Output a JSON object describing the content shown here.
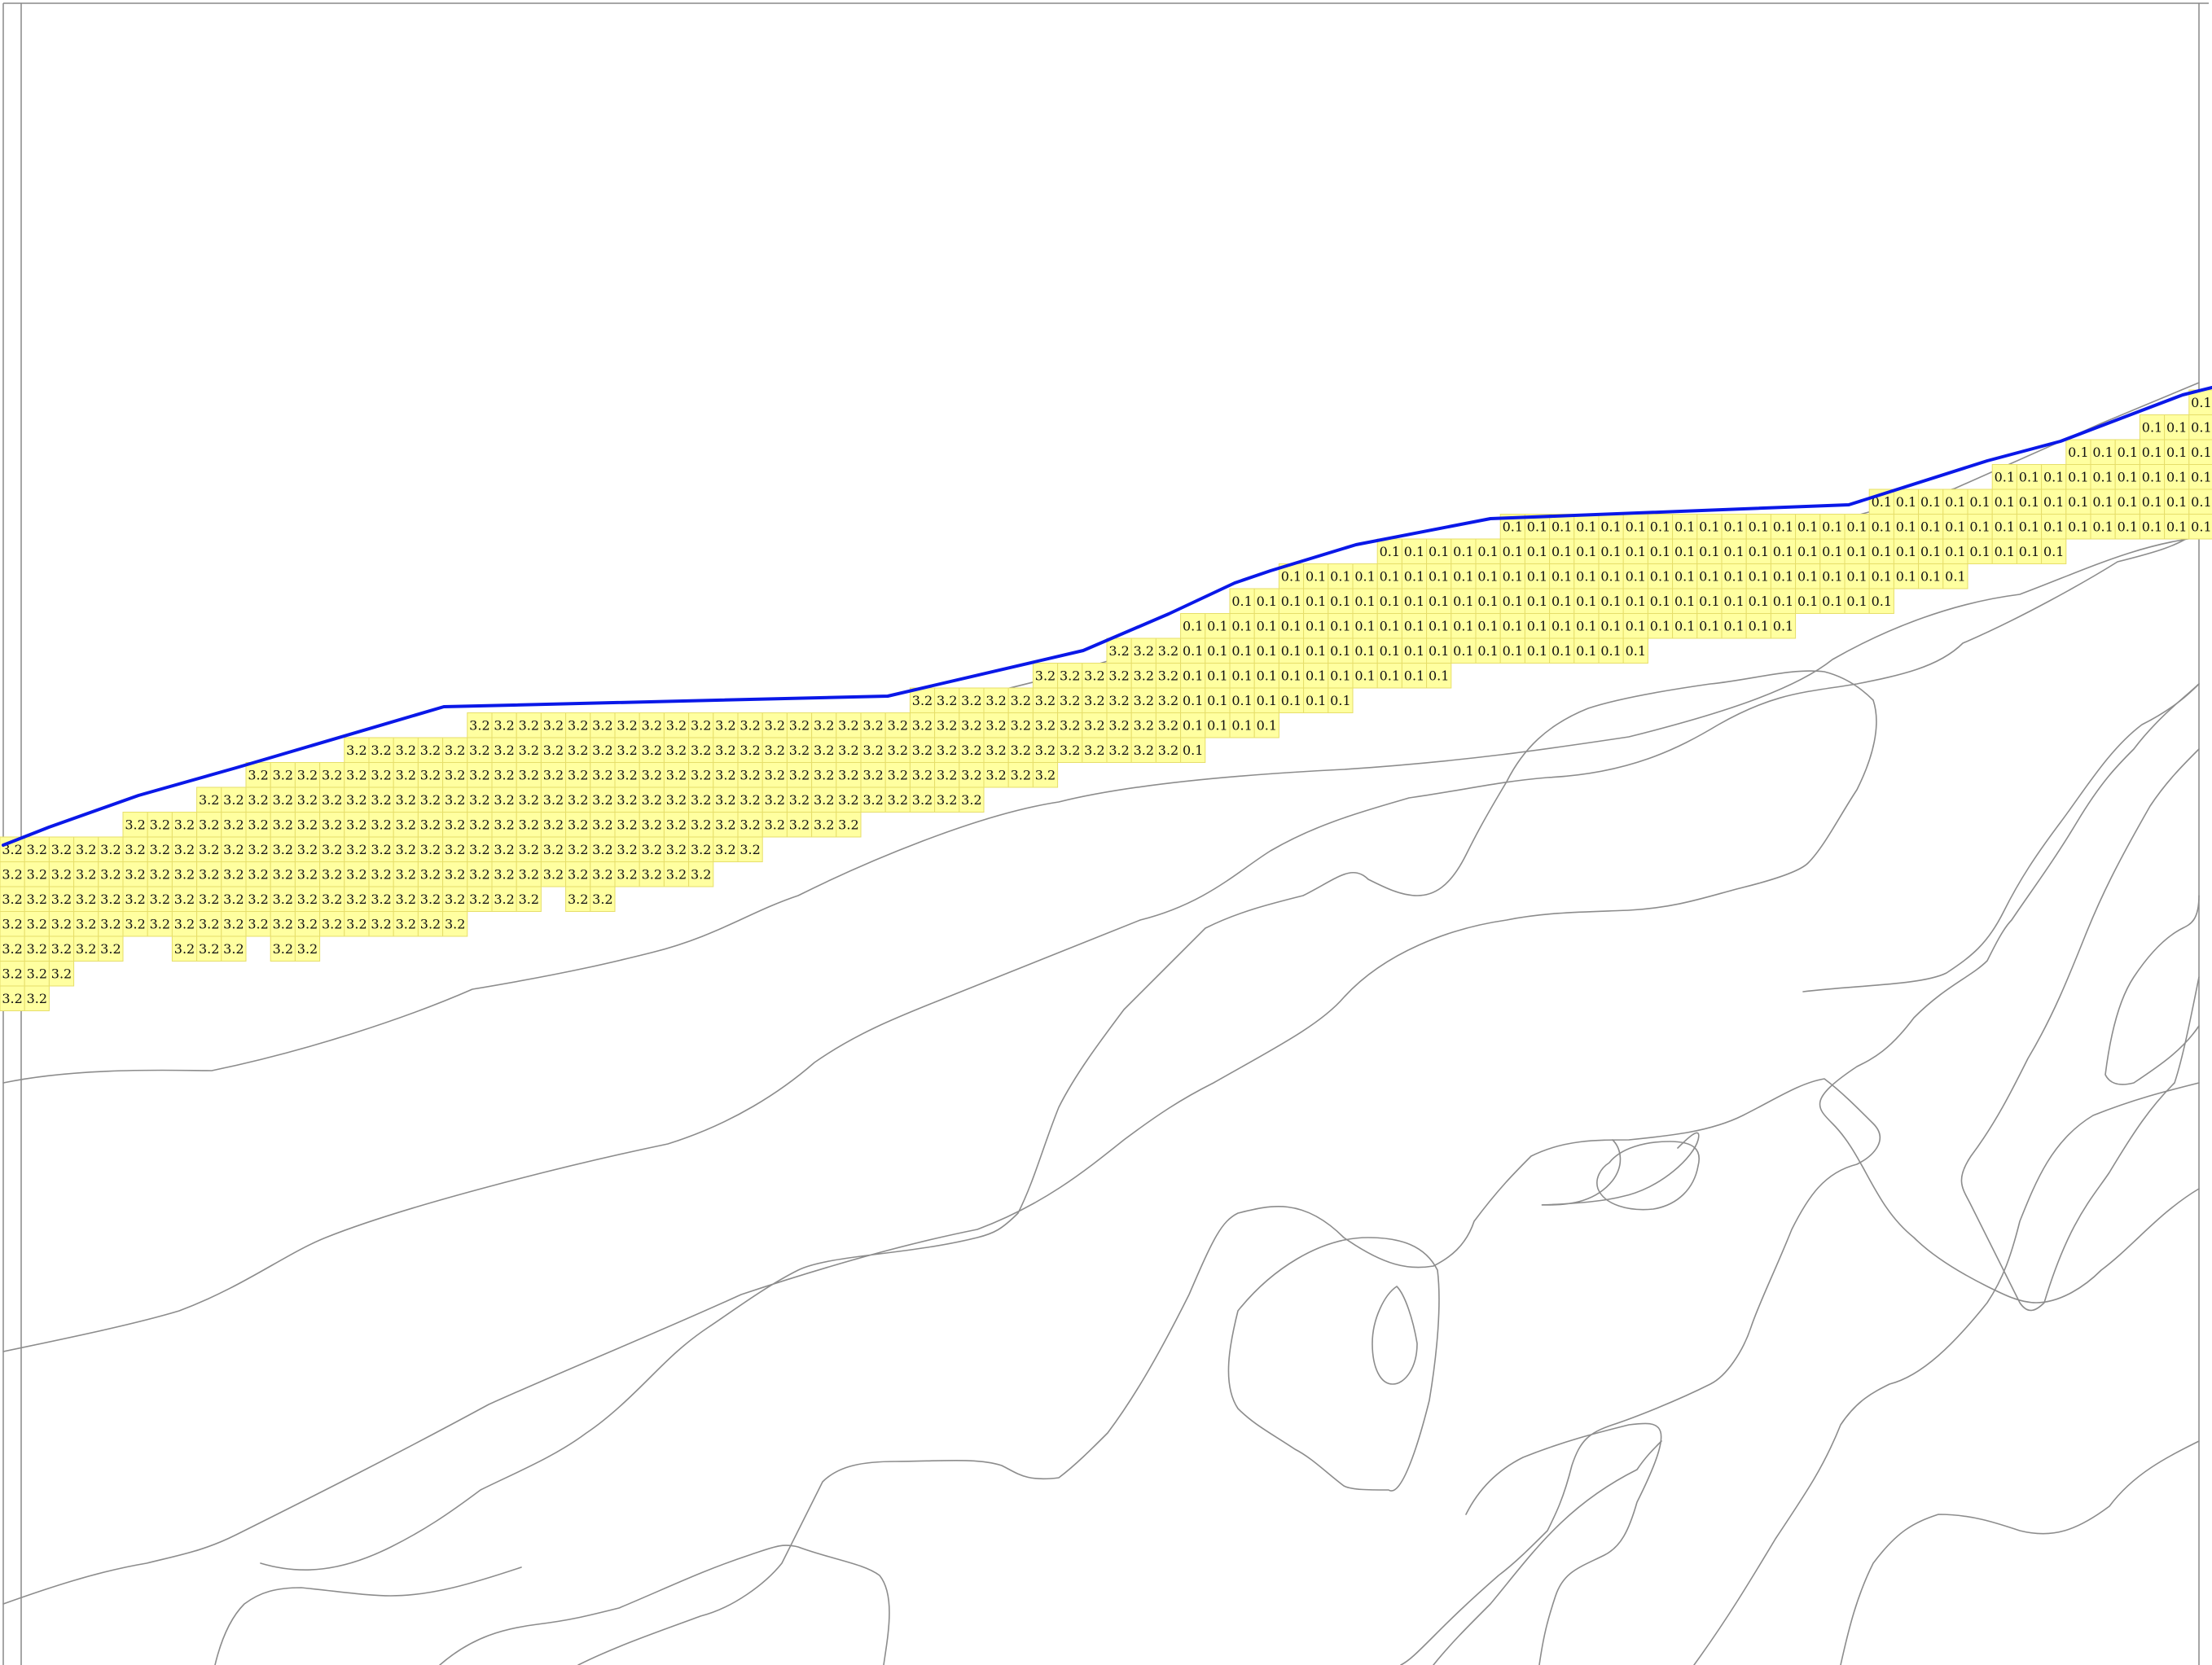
{
  "map": {
    "colors": {
      "background": "#ffffff",
      "frame": "#888888",
      "contour": "#8c8c8c",
      "boundary": "#0a18e8",
      "cell_fill": "#ffffa0",
      "cell_stroke": "#e6de6a",
      "cell_text": "#111111"
    },
    "zones": [
      {
        "name": "zone-3-2",
        "value_label": "3.2"
      },
      {
        "name": "zone-0-1",
        "value_label": "0.1"
      }
    ],
    "features": [
      "page-frame",
      "contour-lines",
      "boundary-line",
      "value-grid"
    ]
  }
}
